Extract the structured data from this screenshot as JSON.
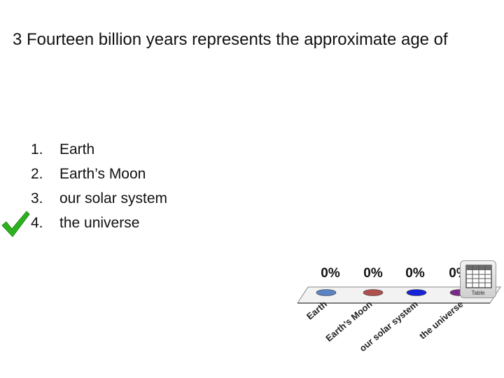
{
  "question": {
    "title": "3 Fourteen billion years represents the approximate age of"
  },
  "answers": [
    {
      "number": "1.",
      "text": "Earth",
      "correct": false
    },
    {
      "number": "2.",
      "text": "Earth’s Moon",
      "correct": false
    },
    {
      "number": "3.",
      "text": "our solar system",
      "correct": false
    },
    {
      "number": "4.",
      "text": "the universe",
      "correct": true
    }
  ],
  "check_icon": {
    "name": "checkmark-icon",
    "color": "#2db21f"
  },
  "chart_data": {
    "type": "bar",
    "categories": [
      "Earth",
      "Earth’s Moon",
      "our solar system",
      "the universe"
    ],
    "values": [
      0,
      0,
      0,
      0
    ],
    "value_labels": [
      "0%",
      "0%",
      "0%",
      "0%"
    ],
    "colors": [
      "#5b84c4",
      "#b0504d",
      "#1624d8",
      "#7a2a8a"
    ],
    "ylim": [
      0,
      100
    ]
  },
  "table_button": {
    "label": "Table",
    "icon": "grid-table-icon"
  }
}
